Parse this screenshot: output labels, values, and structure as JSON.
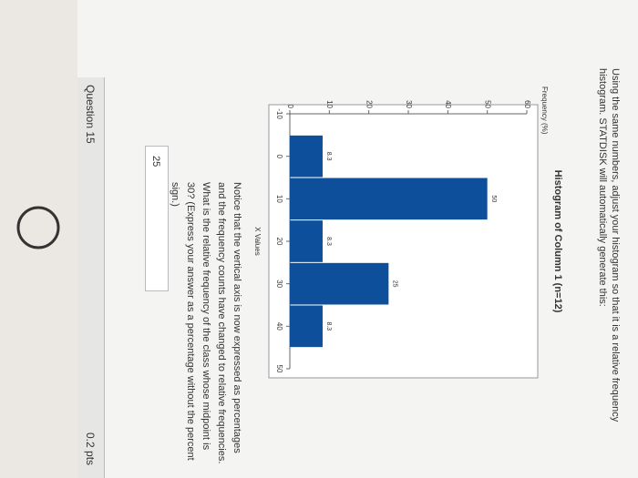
{
  "question_text": "Using the same numbers, adjust your histogram so that it is a relative frequency histogram. STATDISK will automatically generate this:",
  "chart_data": {
    "type": "histogram",
    "title": "Histogram of Column 1 (n=12)",
    "x_label": "X Values",
    "y_label": "Frequency (%)",
    "bins": [
      -5,
      5,
      15,
      25,
      35,
      45
    ],
    "values": [
      8.3,
      50,
      8.3,
      25,
      8.3
    ],
    "color": "#0d4f9a",
    "xlim": [
      -10,
      50
    ],
    "xticks": [
      -10,
      0,
      10,
      20,
      30,
      40,
      50
    ],
    "ylim": [
      0,
      60
    ],
    "yticks": [
      0,
      10,
      20,
      30,
      40,
      50,
      60
    ]
  },
  "notice_text": "Notice that the vertical axis is now expressed as percentages and the frequency counts have changed to relative frequencies. What is the relative frequency of the class whose midpoint is 30? (Express your answer as a percentage without the percent sign.)",
  "answer": "25",
  "question_header": {
    "title": "Question 15",
    "points": "0.2 pts"
  }
}
